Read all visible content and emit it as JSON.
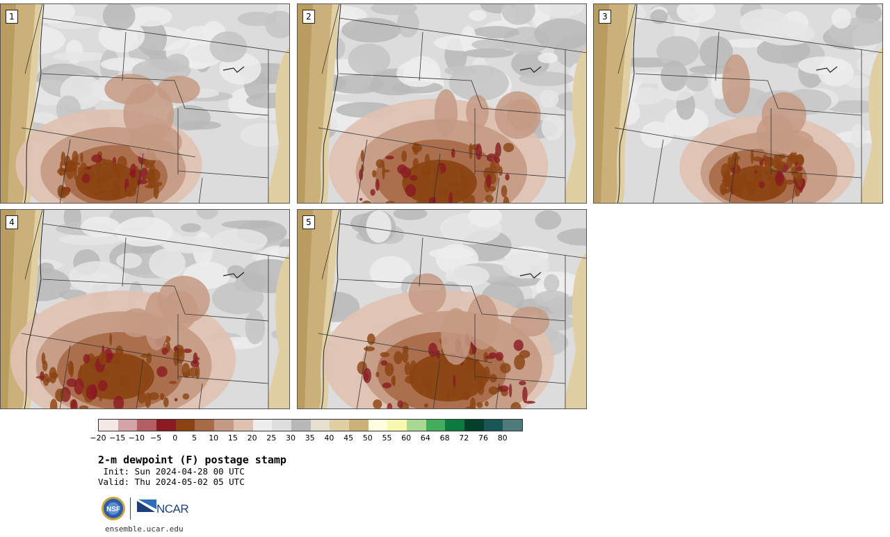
{
  "panels": [
    {
      "label": "1",
      "intensity": 0.55,
      "seed": 1
    },
    {
      "label": "2",
      "intensity": 0.85,
      "seed": 2
    },
    {
      "label": "3",
      "intensity": 0.45,
      "seed": 3
    },
    {
      "label": "4",
      "intensity": 0.9,
      "seed": 4
    },
    {
      "label": "5",
      "intensity": 0.95,
      "seed": 5
    }
  ],
  "colorbar": {
    "colors": [
      "#f3e8e6",
      "#d4a3a5",
      "#b35e63",
      "#8a1a22",
      "#8a4210",
      "#a86b48",
      "#c49a84",
      "#dfc1b1",
      "#ededed",
      "#dedede",
      "#b8b8b8",
      "#e5e0cf",
      "#e0cfa3",
      "#cbb07a",
      "#fffde0",
      "#f8f7b0",
      "#a9d892",
      "#43ad5b",
      "#0b7a3e",
      "#05412a",
      "#1a5655",
      "#4e7a7b"
    ],
    "tick_labels": [
      "−20",
      "−15",
      "−10",
      "−5",
      "0",
      "5",
      "10",
      "15",
      "20",
      "25",
      "30",
      "35",
      "40",
      "45",
      "50",
      "55",
      "60",
      "64",
      "68",
      "72",
      "76",
      "80"
    ]
  },
  "title": "2-m dewpoint (F) postage stamp",
  "init": " Init: Sun 2024-04-28 00 UTC",
  "valid": "Valid: Thu 2024-05-02 05 UTC",
  "logos": {
    "nsf": "NSF",
    "ncar": "NCAR"
  },
  "website": "ensemble.ucar.edu"
}
